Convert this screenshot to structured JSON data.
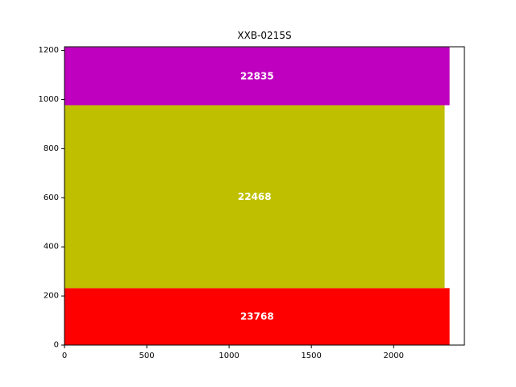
{
  "chart_data": {
    "type": "bar",
    "orientation": "horizontal",
    "title": "XXB-0215S",
    "xlabel": "",
    "ylabel": "",
    "xlim": [
      0,
      2430
    ],
    "ylim": [
      0,
      1215
    ],
    "x_ticks": [
      0,
      500,
      1000,
      1500,
      2000
    ],
    "y_ticks": [
      0,
      200,
      400,
      600,
      800,
      1000,
      1200
    ],
    "grid": false,
    "legend": "none",
    "bars": [
      {
        "label": "23768",
        "y_start": 0,
        "y_end": 232,
        "length": 2340,
        "color": "#ff0000"
      },
      {
        "label": "22468",
        "y_start": 232,
        "y_end": 977,
        "length": 2310,
        "color": "#bfbf00"
      },
      {
        "label": "22835",
        "y_start": 977,
        "y_end": 1213,
        "length": 2340,
        "color": "#bf00bf"
      }
    ]
  }
}
